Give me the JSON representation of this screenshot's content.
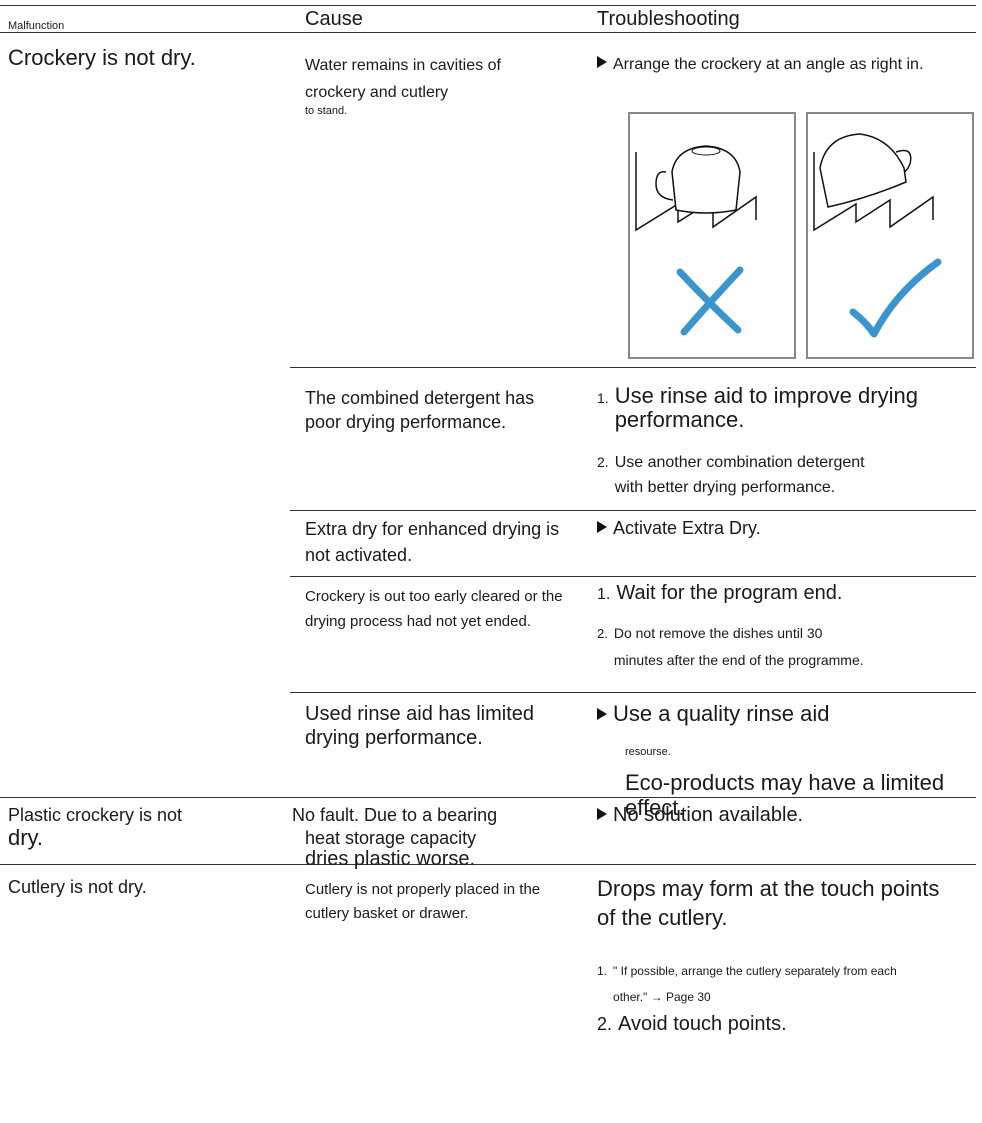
{
  "header": {
    "malfunction": "Malfunction",
    "cause": "Cause",
    "troubleshooting": "Troubleshooting"
  },
  "rows": [
    {
      "malfunction": [
        "Crockery is not dry."
      ],
      "causes": [
        {
          "cause": [
            "Water remains in cavities of crockery and cutlery",
            "to stand."
          ],
          "remedy": [
            {
              "text": "Arrange the crockery at an angle as right in."
            }
          ]
        },
        {
          "cause": [
            "The combined detergent has poor drying performance."
          ],
          "remedy": [
            {
              "num": "1.",
              "text": "Use rinse aid to improve drying performance."
            },
            {
              "num": "2.",
              "text": "Use another combination detergent with better drying performance."
            }
          ]
        },
        {
          "cause": [
            "Extra dry for enhanced drying is not activated."
          ],
          "remedy": [
            {
              "text": "Activate Extra Dry."
            }
          ]
        },
        {
          "cause": [
            "Crockery is out too early cleared or the drying process had not yet ended."
          ],
          "remedy": [
            {
              "num": "1.",
              "text": "Wait for the program end."
            },
            {
              "num": "2.",
              "text": "Do not remove the dishes until 30 minutes after the end of the programme."
            }
          ]
        },
        {
          "cause": [
            "Used rinse aid has limited drying performance."
          ],
          "remedy": [
            {
              "text": "Use a quality rinse aid"
            },
            {
              "text": "resourse."
            },
            {
              "text": "Eco-products may have a limited effect."
            }
          ]
        }
      ]
    },
    {
      "malfunction": [
        "Plastic crockery is not",
        "dry."
      ],
      "causes": [
        {
          "cause": [
            "No fault. Due to a bearing",
            "heat storage capacity",
            "dries plastic worse."
          ],
          "remedy": [
            {
              "text": "No solution available."
            }
          ]
        }
      ]
    },
    {
      "malfunction": [
        "Cutlery is not dry."
      ],
      "causes": [
        {
          "cause": [
            "Cutlery is not properly placed in the cutlery basket or drawer."
          ],
          "remedy": [
            {
              "text": "Drops may form at the touch points of the cutlery."
            },
            {
              "num": "1.",
              "text": "\" If possible, arrange the cutlery separately from each other.\" → Page 30"
            },
            {
              "num": "2.",
              "text": "Avoid touch points."
            }
          ]
        }
      ]
    }
  ]
}
